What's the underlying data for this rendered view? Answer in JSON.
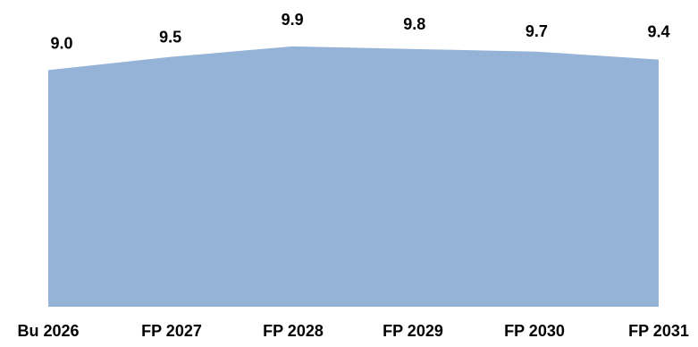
{
  "chart_data": {
    "type": "area",
    "categories": [
      "Bu 2026",
      "FP 2027",
      "FP 2028",
      "FP 2029",
      "FP 2030",
      "FP 2031"
    ],
    "series": [
      {
        "values": [
          9.0,
          9.5,
          9.9,
          9.8,
          9.7,
          9.4
        ],
        "data_labels": [
          "9.0",
          "9.5",
          "9.9",
          "9.8",
          "9.7",
          "9.4"
        ],
        "color": "#95b3d7"
      }
    ],
    "ylim": [
      0,
      10.1
    ],
    "grid": false,
    "legend": "none",
    "title": "",
    "xlabel": "",
    "ylabel": ""
  }
}
